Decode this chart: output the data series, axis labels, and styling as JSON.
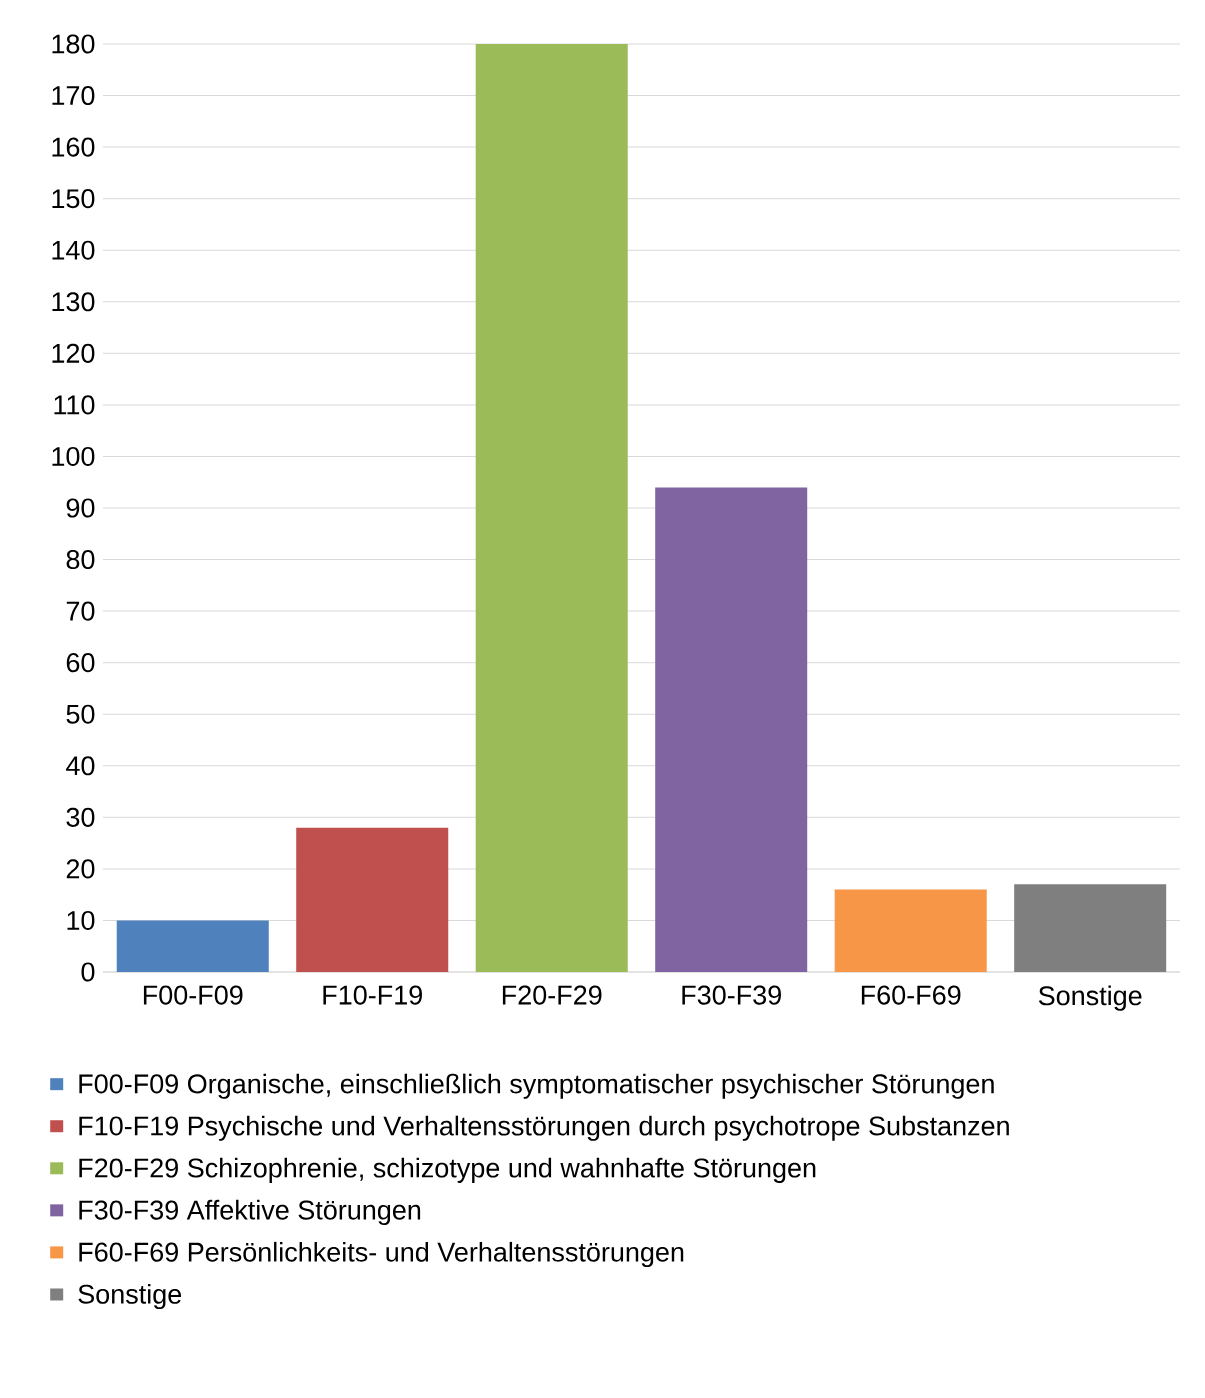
{
  "chart_data": {
    "type": "bar",
    "categories": [
      "F00-F09",
      "F10-F19",
      "F20-F29",
      "F30-F39",
      "F60-F69",
      "Sonstige"
    ],
    "series": [
      {
        "name": "F00-F09 Organische, einschließlich symptomatischer psychischer Störungen",
        "color": "#4f81bd",
        "values": [
          10,
          null,
          null,
          null,
          null,
          null
        ]
      },
      {
        "name": "F10-F19 Psychische und Verhaltensstörungen durch psychotrope Substanzen",
        "color": "#c0504d",
        "values": [
          null,
          28,
          null,
          null,
          null,
          null
        ]
      },
      {
        "name": "F20-F29 Schizophrenie, schizotype und wahnhafte Störungen",
        "color": "#9bbb59",
        "values": [
          null,
          null,
          180,
          null,
          null,
          null
        ]
      },
      {
        "name": "F30-F39 Affektive Störungen",
        "color": "#8064a2",
        "values": [
          null,
          null,
          null,
          94,
          null,
          null
        ]
      },
      {
        "name": "F60-F69 Persönlichkeits- und Verhaltensstörungen",
        "color": "#f79646",
        "values": [
          null,
          null,
          null,
          null,
          16,
          null
        ]
      },
      {
        "name": "Sonstige",
        "color": "#7f7f7f",
        "values": [
          null,
          null,
          null,
          null,
          null,
          17
        ]
      }
    ],
    "ylim": [
      0,
      180
    ],
    "yticks": [
      0,
      10,
      20,
      30,
      40,
      50,
      60,
      70,
      80,
      90,
      100,
      110,
      120,
      130,
      140,
      150,
      160,
      170,
      180
    ],
    "grid": "y",
    "legend": "bottom"
  }
}
